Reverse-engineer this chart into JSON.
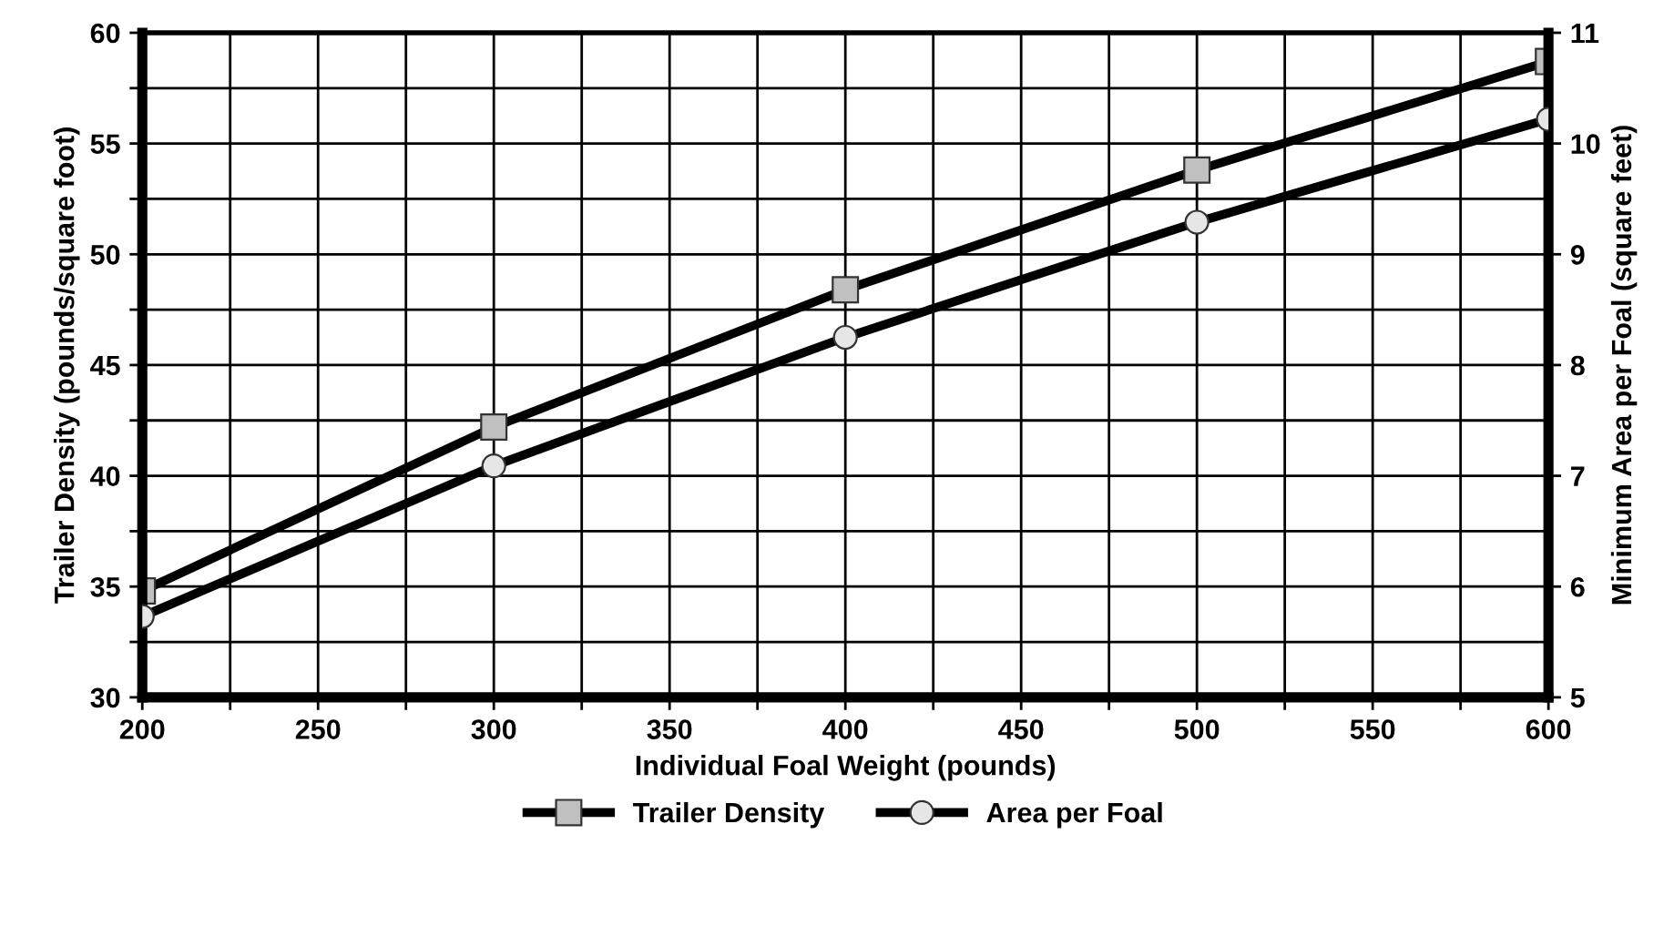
{
  "chart_data": {
    "type": "line",
    "xlabel": "Individual Foal Weight (pounds)",
    "ylabel": "Trailer Density (pounds/square foot)",
    "y2label": "Minimum Area per Foal (square feet)",
    "x": [
      200,
      300,
      400,
      500,
      600
    ],
    "series": [
      {
        "name": "Trailer Density",
        "color": "#000000",
        "marker": "square",
        "values": [
          34.8,
          42.2,
          48.4,
          53.8,
          58.7
        ]
      },
      {
        "name": "Area per Foal",
        "color": "#000000",
        "marker": "circle",
        "axis": "y2",
        "values": [
          5.73,
          7.09,
          8.25,
          9.29,
          10.22
        ]
      }
    ],
    "xlim": [
      200,
      600
    ],
    "xticks": [
      200,
      {
        "value": 225,
        "label": null
      },
      250,
      {
        "value": 275,
        "label": null
      },
      300,
      {
        "value": 325,
        "label": null
      },
      350,
      {
        "value": 375,
        "label": null
      },
      400,
      {
        "value": 425,
        "label": null
      },
      450,
      {
        "value": 475,
        "label": null
      },
      500,
      {
        "value": 525,
        "label": null
      },
      550,
      {
        "value": 575,
        "label": null
      },
      600
    ],
    "ylim": [
      30,
      60
    ],
    "yticks": [
      30,
      {
        "value": 32.5,
        "label": null
      },
      35,
      {
        "value": 37.5,
        "label": null
      },
      40,
      {
        "value": 42.5,
        "label": null
      },
      45,
      {
        "value": 47.5,
        "label": null
      },
      50,
      {
        "value": 52.5,
        "label": null
      },
      55,
      {
        "value": 57.5,
        "label": null
      },
      60
    ],
    "y2lim": [
      5,
      11
    ],
    "y2ticks": [
      5,
      6,
      7,
      8,
      9,
      10,
      11
    ],
    "grid": true,
    "legend": "bottom",
    "line_style": "solid"
  }
}
